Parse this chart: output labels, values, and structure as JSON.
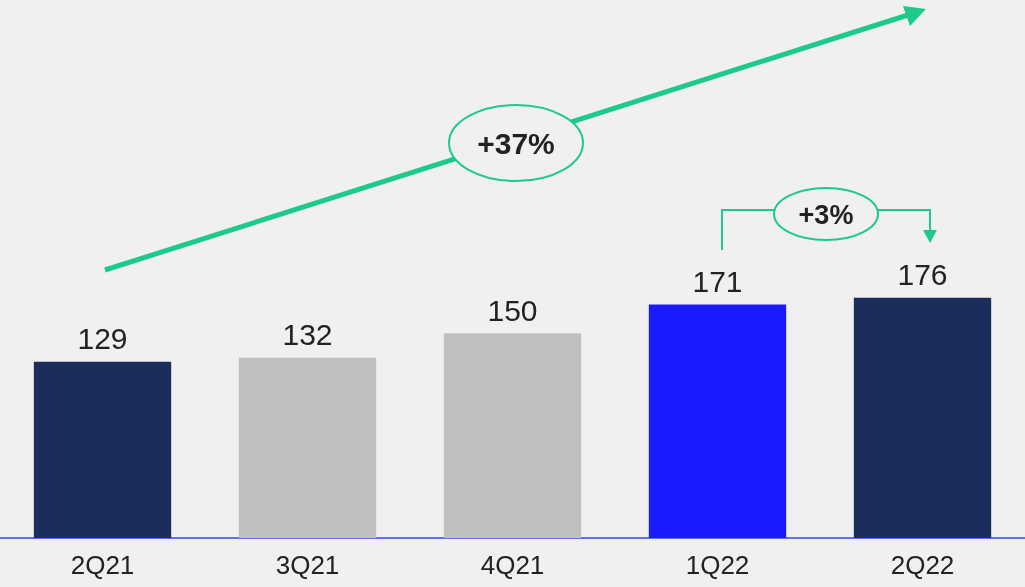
{
  "chart_data": {
    "type": "bar",
    "categories": [
      "2Q21",
      "3Q21",
      "4Q21",
      "1Q22",
      "2Q22"
    ],
    "values": [
      129,
      132,
      150,
      171,
      176
    ],
    "colors": [
      "#1b2d5b",
      "#c0c0c0",
      "#c0c0c0",
      "#1a1aff",
      "#1b2d5b"
    ],
    "ylim": [
      0,
      394
    ],
    "data_labels": true,
    "grid": false,
    "annotations": [
      "+37%",
      "+3%"
    ]
  }
}
